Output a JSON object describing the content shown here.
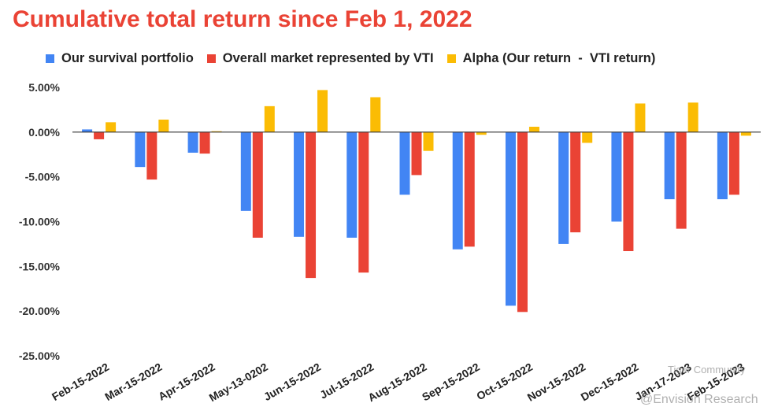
{
  "chart_data": {
    "type": "bar",
    "title": "Cumulative total return since Feb 1, 2022",
    "categories": [
      "Feb-15-2022",
      "Mar-15-2022",
      "Apr-15-2022",
      "May-13-0202",
      "Jun-15-2022",
      "Jul-15-2022",
      "Aug-15-2022",
      "Sep-15-2022",
      "Oct-15-2022",
      "Nov-15-2022",
      "Dec-15-2022",
      "Jan-17-2023",
      "Feb-15-2023"
    ],
    "series": [
      {
        "name": "Our survival portfolio",
        "color": "#4285f4",
        "values": [
          0.3,
          -3.9,
          -2.3,
          -8.8,
          -11.7,
          -11.8,
          -7.0,
          -13.1,
          -19.4,
          -12.5,
          -10.0,
          -7.5,
          -7.5
        ]
      },
      {
        "name": "Overall market represented by VTI",
        "color": "#ea4335",
        "values": [
          -0.8,
          -5.3,
          -2.4,
          -11.8,
          -16.3,
          -15.7,
          -4.8,
          -12.8,
          -20.1,
          -11.2,
          -13.3,
          -10.8,
          -7.0
        ]
      },
      {
        "name": "Alpha (Our return  -  VTI return)",
        "color": "#fbbc04",
        "values": [
          1.1,
          1.4,
          0.1,
          2.9,
          4.7,
          3.9,
          -2.1,
          -0.3,
          0.6,
          -1.2,
          3.2,
          3.3,
          -0.4
        ]
      }
    ],
    "yticks": [
      "5.00%",
      "0.00%",
      "-5.00%",
      "-10.00%",
      "-15.00%",
      "-20.00%",
      "-25.00%"
    ],
    "ylim": [
      -25,
      5
    ],
    "xlabel": "",
    "ylabel": "",
    "legend_position": "top",
    "grid": "zero line only"
  },
  "watermarks": [
    "Tiger Community",
    "@Envision Research"
  ]
}
